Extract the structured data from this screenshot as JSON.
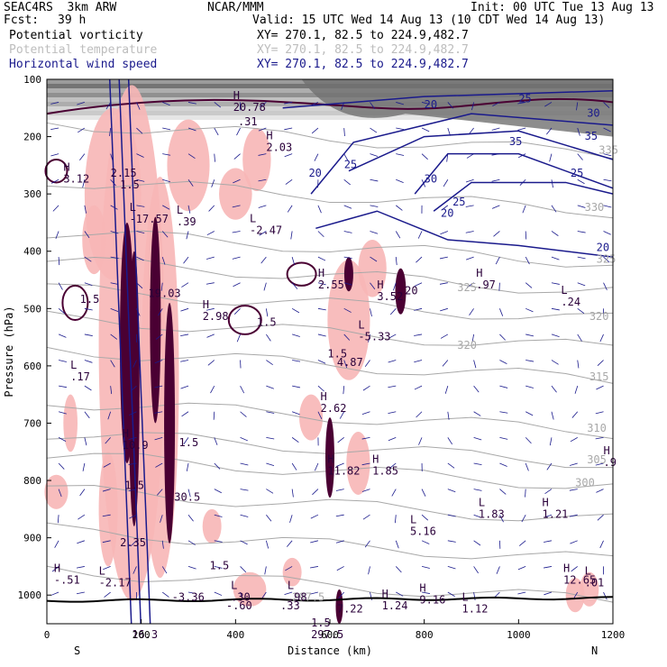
{
  "header": {
    "model": "SEAC4RS  3km ARW",
    "center": "NCAR/MMM",
    "init": "Init: 00 UTC Tue 13 Aug 13",
    "fcst_label": "Fcst:",
    "fcst_value": "39 h",
    "valid": "Valid: 15 UTC Wed 14 Aug 13 (10 CDT Wed 14 Aug 13)"
  },
  "fields": [
    {
      "name": "Potential vorticity",
      "xy": "XY= 270.1, 82.5 to 224.9,482.7",
      "color": "#000000"
    },
    {
      "name": "Potential temperature",
      "xy": "XY= 270.1, 82.5 to 224.9,482.7",
      "color": "#bdbdbd"
    },
    {
      "name": "Horizontal wind speed",
      "xy": "XY= 270.1, 82.5 to 224.9,482.7",
      "color": "#1a1a8c"
    }
  ],
  "axes": {
    "xlabel": "Distance (km)",
    "ylabel": "Pressure (hPa)",
    "left_end": "S",
    "right_end": "N"
  },
  "chart_data": {
    "type": "cross-section contour",
    "x_range": [
      0,
      1200
    ],
    "y_range": [
      1050,
      100
    ],
    "x_ticks": [
      0,
      200,
      400,
      600,
      800,
      1000,
      1200
    ],
    "y_ticks": [
      100,
      200,
      300,
      400,
      500,
      600,
      700,
      800,
      900,
      1000
    ],
    "colors": {
      "terrain": "#000000",
      "pv_fill": "#f7b6b6",
      "pv_contour": "#4a0033",
      "theta": "#a8a8a8",
      "wind_contour": "#1a1a8c",
      "vectors": "#1a1a8c",
      "stratosphere_shade": "#5a5a5a"
    },
    "theta_labels": [
      {
        "x": 1170,
        "p": 230,
        "text": "335"
      },
      {
        "x": 1140,
        "p": 330,
        "text": "330"
      },
      {
        "x": 1165,
        "p": 420,
        "text": "325"
      },
      {
        "x": 870,
        "p": 470,
        "text": "325"
      },
      {
        "x": 1150,
        "p": 520,
        "text": "320"
      },
      {
        "x": 870,
        "p": 570,
        "text": "320"
      },
      {
        "x": 1150,
        "p": 625,
        "text": "315"
      },
      {
        "x": 1145,
        "p": 715,
        "text": "310"
      },
      {
        "x": 1145,
        "p": 770,
        "text": "305"
      },
      {
        "x": 1120,
        "p": 810,
        "text": "300"
      },
      {
        "x": 520,
        "p": 1010,
        "text": "297.5"
      }
    ],
    "wind_labels": [
      {
        "x": 800,
        "p": 150,
        "text": "20"
      },
      {
        "x": 1000,
        "p": 140,
        "text": "25"
      },
      {
        "x": 1145,
        "p": 165,
        "text": "30"
      },
      {
        "x": 1140,
        "p": 205,
        "text": "35"
      },
      {
        "x": 1110,
        "p": 270,
        "text": "25"
      },
      {
        "x": 980,
        "p": 215,
        "text": "35"
      },
      {
        "x": 800,
        "p": 280,
        "text": "30"
      },
      {
        "x": 630,
        "p": 255,
        "text": "25"
      },
      {
        "x": 555,
        "p": 270,
        "text": "20"
      },
      {
        "x": 860,
        "p": 320,
        "text": "25"
      },
      {
        "x": 835,
        "p": 340,
        "text": "20"
      },
      {
        "x": 1165,
        "p": 400,
        "text": "20"
      }
    ],
    "extrema": [
      {
        "x": 395,
        "p": 155,
        "kind": "H",
        "value": "20.78"
      },
      {
        "x": 405,
        "p": 180,
        "kind": "",
        "value": ".31"
      },
      {
        "x": 465,
        "p": 225,
        "kind": "H",
        "value": "2.03"
      },
      {
        "x": 35,
        "p": 280,
        "kind": "H",
        "value": "3.12"
      },
      {
        "x": 135,
        "p": 270,
        "kind": "",
        "value": "2.15"
      },
      {
        "x": 155,
        "p": 290,
        "kind": "",
        "value": "1.5"
      },
      {
        "x": 175,
        "p": 350,
        "kind": "L",
        "value": "-17.57"
      },
      {
        "x": 275,
        "p": 355,
        "kind": "L",
        "value": ".39"
      },
      {
        "x": 430,
        "p": 370,
        "kind": "L",
        "value": "-2.47"
      },
      {
        "x": 575,
        "p": 465,
        "kind": "H",
        "value": "2.55"
      },
      {
        "x": 700,
        "p": 485,
        "kind": "H",
        "value": "3.52"
      },
      {
        "x": 745,
        "p": 475,
        "kind": "",
        "value": ".20"
      },
      {
        "x": 910,
        "p": 465,
        "kind": "H",
        "value": ".97"
      },
      {
        "x": 1090,
        "p": 495,
        "kind": "L",
        "value": ".24"
      },
      {
        "x": 70,
        "p": 490,
        "kind": "",
        "value": "1.5"
      },
      {
        "x": 215,
        "p": 480,
        "kind": "",
        "value": "19.03"
      },
      {
        "x": 330,
        "p": 520,
        "kind": "H",
        "value": "2.98"
      },
      {
        "x": 445,
        "p": 530,
        "kind": "",
        "value": "1.5"
      },
      {
        "x": 660,
        "p": 555,
        "kind": "L",
        "value": "-5.33"
      },
      {
        "x": 595,
        "p": 585,
        "kind": "",
        "value": "1.5"
      },
      {
        "x": 615,
        "p": 600,
        "kind": "",
        "value": "4.87"
      },
      {
        "x": 50,
        "p": 625,
        "kind": "L",
        "value": ".17"
      },
      {
        "x": 580,
        "p": 680,
        "kind": "H",
        "value": "2.62"
      },
      {
        "x": 160,
        "p": 745,
        "kind": "H",
        "value": "10.9"
      },
      {
        "x": 280,
        "p": 740,
        "kind": "",
        "value": "1.5"
      },
      {
        "x": 595,
        "p": 790,
        "kind": "H",
        "value": "11.82"
      },
      {
        "x": 690,
        "p": 790,
        "kind": "H",
        "value": "1.85"
      },
      {
        "x": 1180,
        "p": 775,
        "kind": "H",
        "value": ".9"
      },
      {
        "x": 165,
        "p": 815,
        "kind": "",
        "value": "1.5"
      },
      {
        "x": 270,
        "p": 835,
        "kind": "",
        "value": "30.5"
      },
      {
        "x": 915,
        "p": 865,
        "kind": "L",
        "value": "1.83"
      },
      {
        "x": 1050,
        "p": 865,
        "kind": "H",
        "value": "1.21"
      },
      {
        "x": 770,
        "p": 895,
        "kind": "L",
        "value": "5.16"
      },
      {
        "x": 155,
        "p": 915,
        "kind": "",
        "value": "2.35"
      },
      {
        "x": 345,
        "p": 955,
        "kind": "",
        "value": "1.5"
      },
      {
        "x": 15,
        "p": 980,
        "kind": "H",
        "value": "-.51"
      },
      {
        "x": 110,
        "p": 985,
        "kind": "L",
        "value": "-2.17"
      },
      {
        "x": 1095,
        "p": 980,
        "kind": "H",
        "value": "12.65"
      },
      {
        "x": 1140,
        "p": 985,
        "kind": "L",
        "value": ".01"
      },
      {
        "x": 265,
        "p": 1010,
        "kind": "",
        "value": "-3.36"
      },
      {
        "x": 390,
        "p": 1010,
        "kind": "L",
        "value": ".30"
      },
      {
        "x": 380,
        "p": 1025,
        "kind": "",
        "value": "-.60"
      },
      {
        "x": 510,
        "p": 1010,
        "kind": "L",
        "value": ".98"
      },
      {
        "x": 495,
        "p": 1025,
        "kind": "",
        "value": ".33"
      },
      {
        "x": 615,
        "p": 1030,
        "kind": "",
        "value": "7.22"
      },
      {
        "x": 710,
        "p": 1025,
        "kind": "H",
        "value": "1.24"
      },
      {
        "x": 790,
        "p": 1015,
        "kind": "H",
        "value": "9.16"
      },
      {
        "x": 880,
        "p": 1030,
        "kind": "L",
        "value": "1.12"
      },
      {
        "x": 560,
        "p": 1055,
        "kind": "",
        "value": "1.5"
      },
      {
        "x": 180,
        "p": 1075,
        "kind": "",
        "value": "16.3"
      },
      {
        "x": 560,
        "p": 1075,
        "kind": "",
        "value": "297.5"
      }
    ]
  }
}
